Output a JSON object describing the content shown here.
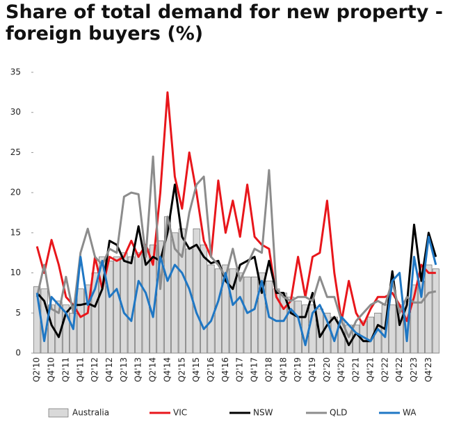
{
  "chart_data": {
    "type": "bar",
    "title": "Share of total demand for new property - foreign buyers (%)",
    "categories": [
      "Q2'10",
      null,
      "Q4'10",
      null,
      "Q2'11",
      null,
      "Q4'11",
      null,
      "Q2'12",
      null,
      "Q4'12",
      null,
      "Q2'13",
      null,
      "Q4'13",
      null,
      "Q2'14",
      null,
      "Q4'14",
      null,
      "Q2'15",
      null,
      "Q4'15",
      null,
      "Q2'16",
      null,
      "Q4'16",
      null,
      "Q2'17",
      null,
      "Q4'17",
      null,
      "Q2'18",
      null,
      "Q4'18",
      null,
      "Q2'19",
      null,
      "Q4'19",
      null,
      "Q2'20",
      null,
      "Q4'20",
      null,
      "Q2'21",
      null,
      "Q4'21",
      null,
      "Q2'22",
      null,
      "Q4'22",
      null,
      "Q2'23",
      null,
      "Q4'23",
      null
    ],
    "series": [
      {
        "name": "Australia",
        "type": "bar",
        "color": "#d9d9d9",
        "values": [
          8.3,
          8,
          6,
          6.5,
          6,
          5,
          8,
          8.5,
          10,
          12,
          11.5,
          12,
          12.5,
          12,
          12.5,
          13,
          13.5,
          14,
          17,
          15,
          15.5,
          13,
          15.5,
          13.5,
          11,
          10.5,
          11,
          10.5,
          10,
          9.5,
          9.5,
          10,
          9,
          8,
          7.5,
          7,
          6.5,
          6,
          6,
          5.5,
          5,
          4.5,
          4,
          3.5,
          3.5,
          4,
          4.5,
          5,
          6,
          6,
          6,
          6.5,
          8.5,
          9,
          11,
          10.5
        ]
      },
      {
        "name": "VIC",
        "type": "line",
        "color": "#e8161b",
        "values": [
          13.3,
          10,
          14.1,
          11,
          7,
          6,
          4.5,
          5,
          12,
          8,
          12,
          11.5,
          12,
          14,
          12,
          13.5,
          11,
          20,
          32.5,
          22,
          18,
          25,
          20,
          14,
          12,
          21.5,
          15,
          19,
          14.5,
          21,
          14.5,
          13.5,
          13,
          7,
          5.5,
          6.5,
          12,
          7,
          12,
          12.5,
          19,
          10,
          4,
          9,
          5,
          3.5,
          5.5,
          7,
          7,
          7.5,
          6,
          4,
          7,
          11,
          10,
          10
        ]
      },
      {
        "name": "NSW",
        "type": "line",
        "color": "#000000",
        "values": [
          7.5,
          6.5,
          3.5,
          2,
          5,
          6,
          6,
          6.2,
          5.8,
          8,
          14,
          13.5,
          11.5,
          11.2,
          15.8,
          11,
          12,
          11.5,
          15,
          21,
          14.5,
          13,
          13.5,
          12,
          11.2,
          11.5,
          9,
          8,
          11,
          11.5,
          12,
          7.5,
          11.5,
          7.5,
          7.5,
          5,
          4.5,
          4.5,
          7.5,
          2,
          3.5,
          4.5,
          3,
          1,
          2.5,
          1.5,
          1.5,
          3.5,
          3,
          10.2,
          3.5,
          6,
          16,
          9,
          15,
          12
        ]
      },
      {
        "name": "QLD",
        "type": "line",
        "color": "#8c8c8c",
        "values": [
          7,
          11,
          5.5,
          5,
          9.5,
          5,
          12.5,
          15.5,
          12,
          11,
          13,
          12.5,
          19.5,
          20,
          19.8,
          12,
          24.5,
          8,
          17,
          13,
          12,
          17.5,
          21,
          22,
          12,
          11,
          9.5,
          13,
          9,
          11,
          13,
          12.5,
          22.8,
          8,
          7,
          6.5,
          7,
          7,
          6.5,
          9.5,
          7,
          7,
          4,
          2,
          4,
          5,
          6,
          6.5,
          6,
          9,
          5,
          7,
          6.3,
          6.3,
          7.5,
          7.7
        ]
      },
      {
        "name": "WA",
        "type": "line",
        "color": "#1f77c4",
        "values": [
          7.5,
          1.5,
          7,
          6,
          5,
          3,
          12,
          6,
          8,
          11.5,
          7,
          8,
          5,
          4,
          9,
          7.5,
          4.5,
          12,
          9,
          11,
          10,
          8,
          5,
          3,
          4,
          6.5,
          10,
          6,
          7,
          5,
          5.5,
          9,
          4.5,
          4,
          4,
          5.5,
          4.5,
          1,
          5,
          6,
          4,
          1.5,
          4.5,
          3.5,
          2.5,
          2,
          1.5,
          3,
          2,
          9,
          10,
          1.5,
          12,
          7,
          14.5,
          11
        ]
      }
    ],
    "ylim": [
      0,
      35
    ],
    "yticks": [
      0,
      5,
      10,
      15,
      20,
      25,
      30,
      35
    ]
  }
}
